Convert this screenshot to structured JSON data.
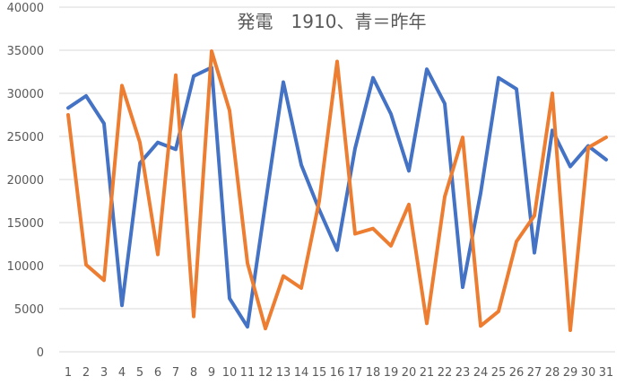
{
  "chart_data": {
    "type": "line",
    "title": "発電　1910、青＝昨年",
    "xlabel": "",
    "ylabel": "",
    "ylim": [
      0,
      40000
    ],
    "yticks": [
      0,
      5000,
      10000,
      15000,
      20000,
      25000,
      30000,
      35000,
      40000
    ],
    "grid": true,
    "legend": "none",
    "x": [
      "1",
      "2",
      "3",
      "4",
      "5",
      "6",
      "7",
      "8",
      "9",
      "10",
      "11",
      "12",
      "13",
      "14",
      "15",
      "16",
      "17",
      "18",
      "19",
      "20",
      "21",
      "22",
      "23",
      "24",
      "25",
      "26",
      "27",
      "28",
      "29",
      "30",
      "31"
    ],
    "series": [
      {
        "color": "#4472c4",
        "values": [
          28300,
          29700,
          26500,
          5400,
          21900,
          24300,
          23500,
          32000,
          33000,
          6200,
          2900,
          17200,
          31300,
          21700,
          16500,
          11800,
          23600,
          31800,
          27600,
          21000,
          32800,
          28800,
          7500,
          18400,
          31800,
          30500,
          11500,
          25700,
          21500,
          23900,
          22300
        ]
      },
      {
        "color": "#ed7d31",
        "values": [
          27500,
          10100,
          8300,
          30900,
          24300,
          11300,
          32100,
          4100,
          34900,
          28000,
          10300,
          2700,
          8800,
          7400,
          17500,
          33700,
          13700,
          14300,
          12300,
          17100,
          3300,
          18000,
          24900,
          3000,
          4700,
          12800,
          15800,
          30000,
          2500,
          23700,
          24900
        ]
      }
    ]
  }
}
